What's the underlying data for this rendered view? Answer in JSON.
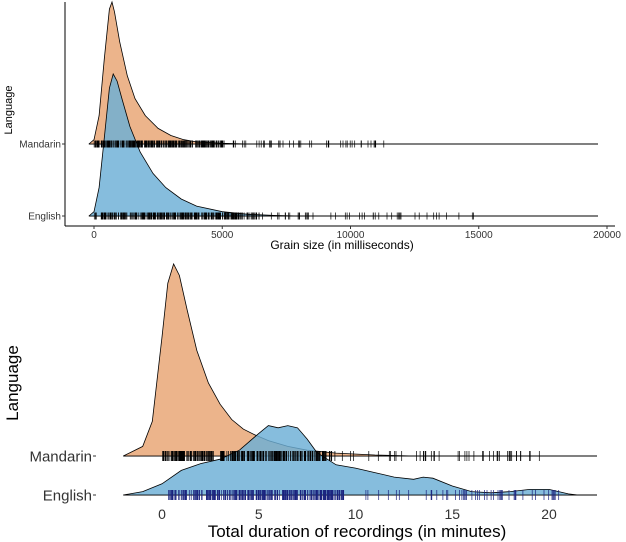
{
  "colors": {
    "mandarin": "#E8A472",
    "english": "#6BAED6",
    "axis": "#000000"
  },
  "chart_data": [
    {
      "type": "ridgeline",
      "title": "",
      "xlabel": "Grain size (in milliseconds)",
      "ylabel": "Language",
      "xlim": [
        -500,
        20000
      ],
      "x_ticks": [
        0,
        5000,
        10000,
        15000,
        20000
      ],
      "x_tick_labels": [
        "0",
        "5000",
        "10000",
        "15000",
        "20000"
      ],
      "grid": false,
      "series": [
        {
          "name": "Mandarin",
          "rug_range": [
            0,
            11300
          ],
          "density": [
            [
              -200,
              0
            ],
            [
              0,
              0.03
            ],
            [
              200,
              0.2
            ],
            [
              400,
              0.6
            ],
            [
              600,
              0.95
            ],
            [
              700,
              1.0
            ],
            [
              800,
              0.93
            ],
            [
              1000,
              0.72
            ],
            [
              1300,
              0.48
            ],
            [
              1600,
              0.32
            ],
            [
              2000,
              0.2
            ],
            [
              2500,
              0.11
            ],
            [
              3000,
              0.06
            ],
            [
              3500,
              0.03
            ],
            [
              4000,
              0.015
            ],
            [
              5000,
              0.005
            ],
            [
              6000,
              0
            ]
          ]
        },
        {
          "name": "English",
          "rug_range": [
            0,
            14800
          ],
          "density": [
            [
              -200,
              0
            ],
            [
              0,
              0.03
            ],
            [
              200,
              0.2
            ],
            [
              400,
              0.55
            ],
            [
              600,
              0.9
            ],
            [
              750,
              1.0
            ],
            [
              900,
              0.95
            ],
            [
              1100,
              0.82
            ],
            [
              1400,
              0.63
            ],
            [
              1800,
              0.45
            ],
            [
              2300,
              0.3
            ],
            [
              2800,
              0.2
            ],
            [
              3400,
              0.12
            ],
            [
              4000,
              0.07
            ],
            [
              5000,
              0.03
            ],
            [
              6000,
              0.012
            ],
            [
              7000,
              0.004
            ],
            [
              8000,
              0
            ]
          ]
        }
      ]
    },
    {
      "type": "ridgeline",
      "title": "",
      "xlabel": "Total duration of recordings (in minutes)",
      "ylabel": "Language",
      "xlim": [
        -2.5,
        21.5
      ],
      "x_ticks": [
        0,
        5,
        10,
        15,
        20
      ],
      "x_tick_labels": [
        "0",
        "5",
        "10",
        "15",
        "20"
      ],
      "grid": false,
      "series": [
        {
          "name": "Mandarin",
          "rug_range": [
            0,
            19.5
          ],
          "density": [
            [
              -2,
              0
            ],
            [
              -1,
              0.05
            ],
            [
              -0.5,
              0.18
            ],
            [
              0,
              0.62
            ],
            [
              0.3,
              0.9
            ],
            [
              0.6,
              1.0
            ],
            [
              0.9,
              0.94
            ],
            [
              1.3,
              0.76
            ],
            [
              1.8,
              0.55
            ],
            [
              2.4,
              0.38
            ],
            [
              3,
              0.27
            ],
            [
              3.6,
              0.19
            ],
            [
              4.2,
              0.14
            ],
            [
              4.8,
              0.11
            ],
            [
              5.5,
              0.08
            ],
            [
              6.5,
              0.05
            ],
            [
              7.5,
              0.03
            ],
            [
              9,
              0.015
            ],
            [
              11,
              0.005
            ],
            [
              13,
              0
            ]
          ]
        },
        {
          "name": "English",
          "rug_range": [
            0.3,
            20.5
          ],
          "density": [
            [
              -2,
              0
            ],
            [
              -1,
              0.03
            ],
            [
              0,
              0.1
            ],
            [
              1,
              0.22
            ],
            [
              2,
              0.28
            ],
            [
              3,
              0.32
            ],
            [
              4,
              0.4
            ],
            [
              5,
              0.55
            ],
            [
              5.5,
              0.62
            ],
            [
              6,
              0.6
            ],
            [
              6.5,
              0.62
            ],
            [
              7,
              0.6
            ],
            [
              7.5,
              0.5
            ],
            [
              8,
              0.38
            ],
            [
              9,
              0.27
            ],
            [
              10,
              0.24
            ],
            [
              11,
              0.2
            ],
            [
              12,
              0.16
            ],
            [
              13,
              0.14
            ],
            [
              13.5,
              0.16
            ],
            [
              14,
              0.15
            ],
            [
              15,
              0.08
            ],
            [
              16,
              0.03
            ],
            [
              17,
              0.02
            ],
            [
              18,
              0.03
            ],
            [
              19,
              0.05
            ],
            [
              20,
              0.05
            ],
            [
              21,
              0.01
            ],
            [
              21.5,
              0
            ]
          ]
        }
      ]
    }
  ]
}
